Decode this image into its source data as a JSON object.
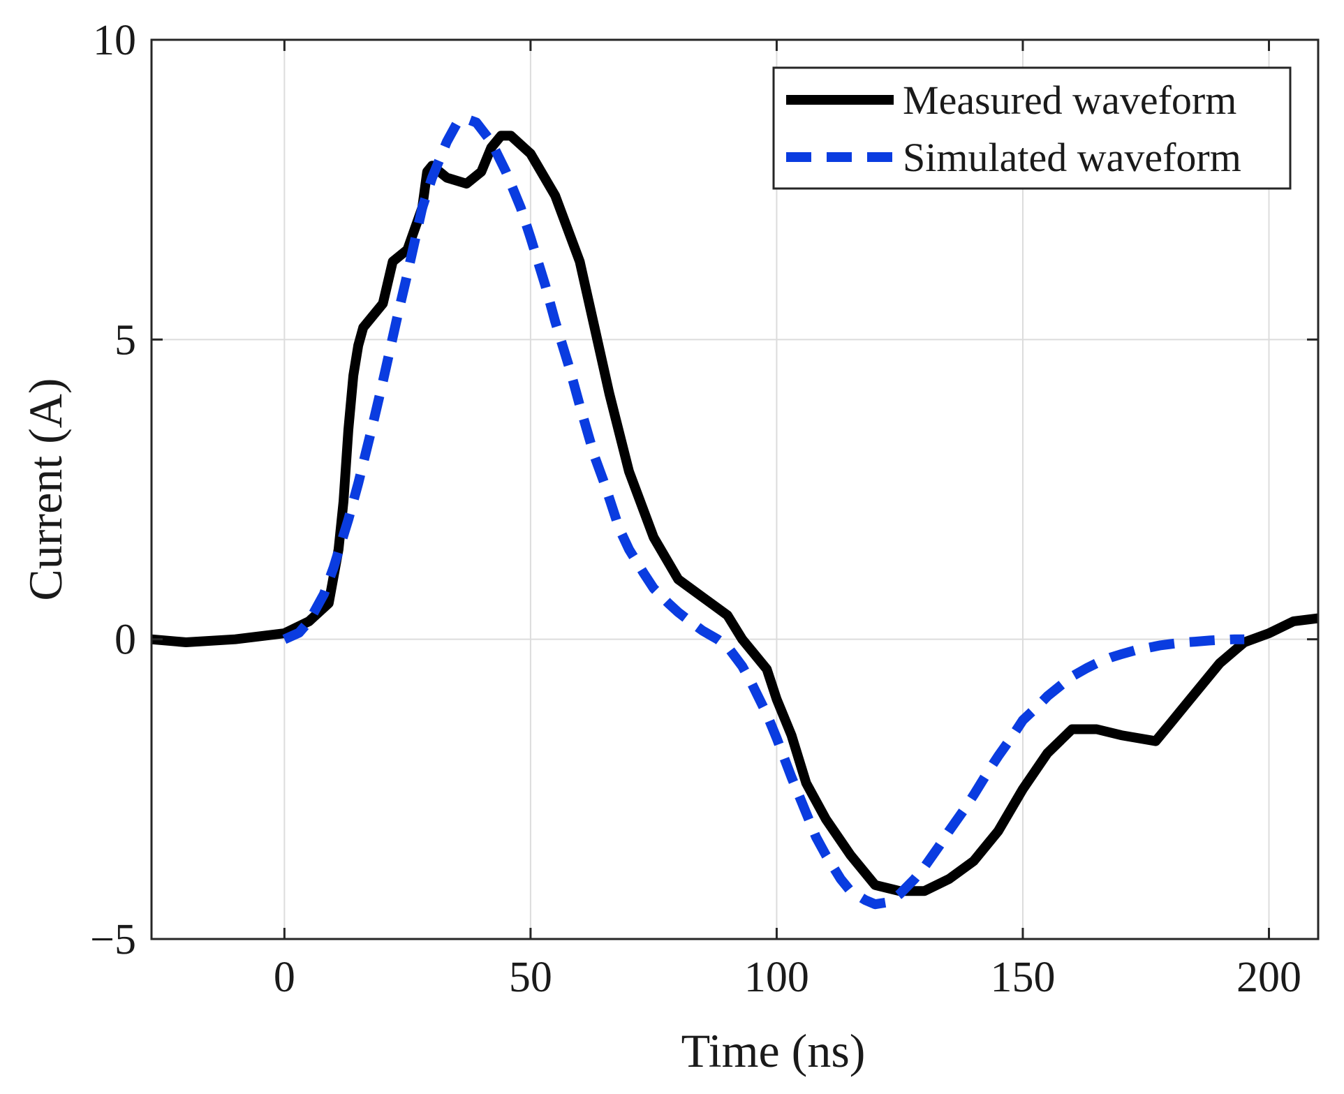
{
  "chart_data": {
    "type": "line",
    "title": "",
    "xlabel": "Time (ns)",
    "ylabel": "Current (A)",
    "xlim": [
      -27,
      210
    ],
    "ylim": [
      -5,
      10
    ],
    "xticks": [
      0,
      50,
      100,
      150,
      200
    ],
    "yticks": [
      -5,
      0,
      5,
      10
    ],
    "xtick_labels": [
      "0",
      "50",
      "100",
      "150",
      "200"
    ],
    "ytick_labels": [
      "−5",
      "0",
      "5",
      "10"
    ],
    "grid": true,
    "legend_position": "top-right",
    "series": [
      {
        "name": "Measured waveform",
        "color": "#000000",
        "style": "solid",
        "x": [
          -27,
          -20,
          -10,
          0,
          5,
          9,
          11,
          12,
          13,
          14,
          15,
          16,
          20,
          22,
          25,
          28,
          29,
          30,
          33,
          37,
          40,
          42,
          44,
          46,
          50,
          55,
          60,
          63,
          66,
          70,
          75,
          80,
          85,
          90,
          93,
          95,
          98,
          100,
          103,
          106,
          110,
          115,
          120,
          125,
          130,
          135,
          140,
          145,
          150,
          155,
          160,
          165,
          170,
          177,
          180,
          185,
          190,
          195,
          200,
          205,
          210
        ],
        "y": [
          0.0,
          -0.05,
          0.0,
          0.1,
          0.3,
          0.6,
          1.5,
          2.3,
          3.5,
          4.4,
          4.9,
          5.2,
          5.6,
          6.3,
          6.5,
          7.2,
          7.8,
          7.9,
          7.7,
          7.6,
          7.8,
          8.2,
          8.4,
          8.4,
          8.1,
          7.4,
          6.3,
          5.2,
          4.1,
          2.8,
          1.7,
          1.0,
          0.7,
          0.4,
          0.0,
          -0.2,
          -0.5,
          -1.0,
          -1.6,
          -2.4,
          -3.0,
          -3.6,
          -4.1,
          -4.2,
          -4.2,
          -4.0,
          -3.7,
          -3.2,
          -2.5,
          -1.9,
          -1.5,
          -1.5,
          -1.6,
          -1.7,
          -1.4,
          -0.9,
          -0.4,
          -0.05,
          0.1,
          0.3,
          0.35
        ]
      },
      {
        "name": "Simulated waveform",
        "color": "#0a3ce0",
        "style": "dashed",
        "x": [
          0,
          3,
          5,
          8,
          10,
          13,
          15,
          18,
          20,
          23,
          25,
          28,
          30,
          33,
          35,
          37,
          39,
          42,
          45,
          48,
          50,
          53,
          55,
          58,
          60,
          63,
          65,
          68,
          70,
          73,
          75,
          78,
          80,
          83,
          85,
          88,
          90,
          93,
          95,
          98,
          100,
          103,
          105,
          108,
          110,
          113,
          115,
          118,
          120,
          123,
          125,
          128,
          130,
          133,
          135,
          138,
          140,
          143,
          145,
          148,
          150,
          153,
          155,
          158,
          160,
          163,
          165,
          168,
          170,
          173,
          175,
          178,
          180,
          183,
          185,
          188,
          190,
          193,
          195
        ],
        "y": [
          0.0,
          0.11,
          0.3,
          0.75,
          1.2,
          2.0,
          2.6,
          3.6,
          4.3,
          5.4,
          6.1,
          7.2,
          7.7,
          8.3,
          8.6,
          8.68,
          8.62,
          8.3,
          7.8,
          7.2,
          6.7,
          5.9,
          5.3,
          4.5,
          3.9,
          3.05,
          2.6,
          1.85,
          1.5,
          1.1,
          0.85,
          0.6,
          0.45,
          0.26,
          0.14,
          0.0,
          -0.12,
          -0.45,
          -0.75,
          -1.25,
          -1.65,
          -2.3,
          -2.7,
          -3.3,
          -3.6,
          -4.0,
          -4.2,
          -4.35,
          -4.42,
          -4.38,
          -4.25,
          -4.0,
          -3.8,
          -3.45,
          -3.2,
          -2.85,
          -2.6,
          -2.2,
          -1.95,
          -1.6,
          -1.35,
          -1.12,
          -0.95,
          -0.75,
          -0.62,
          -0.48,
          -0.4,
          -0.3,
          -0.25,
          -0.18,
          -0.15,
          -0.1,
          -0.08,
          -0.05,
          -0.04,
          -0.02,
          -0.01,
          0.0,
          0.0
        ]
      }
    ]
  }
}
